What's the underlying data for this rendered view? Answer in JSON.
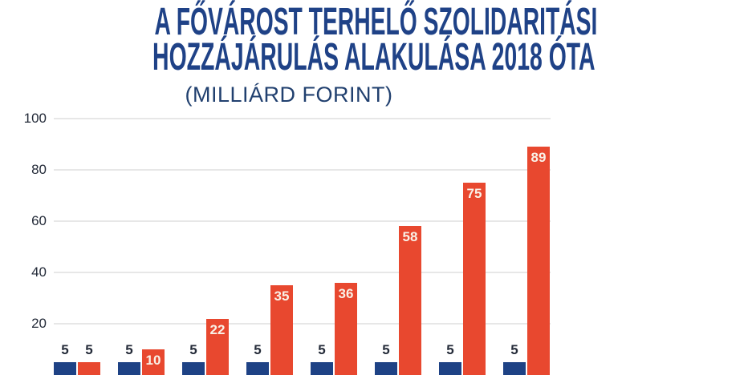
{
  "title": {
    "line1": "A FŐVÁROST TERHELŐ SZOLIDARITÁSI",
    "line2": "HOZZÁJÁRULÁS ALAKULÁSA 2018 ÓTA",
    "subtitle": "(MILLIÁRD FORINT)"
  },
  "colors": {
    "background": "#ffffff",
    "title_navy": "#1f4287",
    "subtitle_navy": "#21406f",
    "axis_text": "#242b39",
    "gridline": "#e7e7e7",
    "bar_red": "#e8482f",
    "bar_navy": "#1e4285",
    "bar_label_light": "#f9f1e7",
    "bar_label_dark": "#242b39"
  },
  "chart_data": {
    "type": "bar",
    "title": "A FŐVÁROST TERHELŐ SZOLIDARITÁSI HOZZÁJÁRULÁS ALAKULÁSA 2018 ÓTA",
    "subtitle": "(MILLIÁRD FORINT)",
    "unit": "milliárd forint",
    "group_count": 8,
    "series": [
      {
        "name": "left-bar",
        "color": "#1e4285",
        "values": [
          5,
          5,
          5,
          5,
          5,
          5,
          5,
          5
        ]
      },
      {
        "name": "right-bar",
        "color": "#e8482f",
        "values": [
          5,
          10,
          22,
          35,
          36,
          58,
          75,
          89
        ]
      }
    ],
    "y_ticks": [
      100,
      80,
      60,
      40,
      20
    ],
    "ylim": [
      0,
      100
    ],
    "grid": true,
    "legend": "none",
    "x_tick_labels_visible": false,
    "value_labels": true
  }
}
